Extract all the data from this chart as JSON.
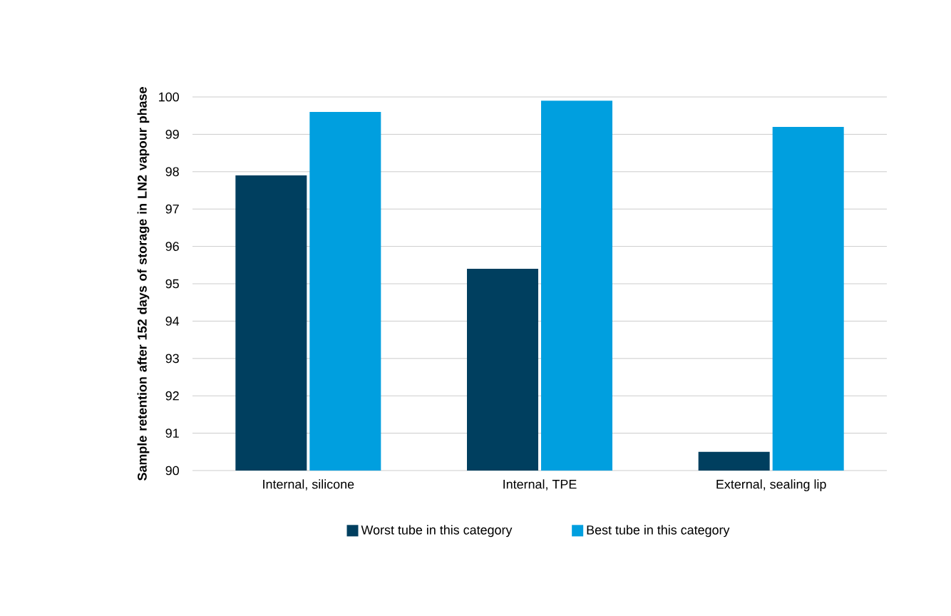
{
  "chart_data": {
    "type": "bar",
    "ylabel": "Sample retention after 152 days of storage in LN2 vapour phase",
    "categories": [
      "Internal, silicone",
      "Internal, TPE",
      "External, sealing lip"
    ],
    "series": [
      {
        "name": "Worst tube in this category",
        "color": "#003f5f",
        "values": [
          97.9,
          95.4,
          90.5
        ]
      },
      {
        "name": "Best tube in this category",
        "color": "#009fdf",
        "values": [
          99.6,
          99.9,
          99.2
        ]
      }
    ],
    "ylim": [
      90,
      100
    ],
    "yticks": [
      90,
      91,
      92,
      93,
      94,
      95,
      96,
      97,
      98,
      99,
      100
    ],
    "grid": "y",
    "legend": "bottom"
  }
}
